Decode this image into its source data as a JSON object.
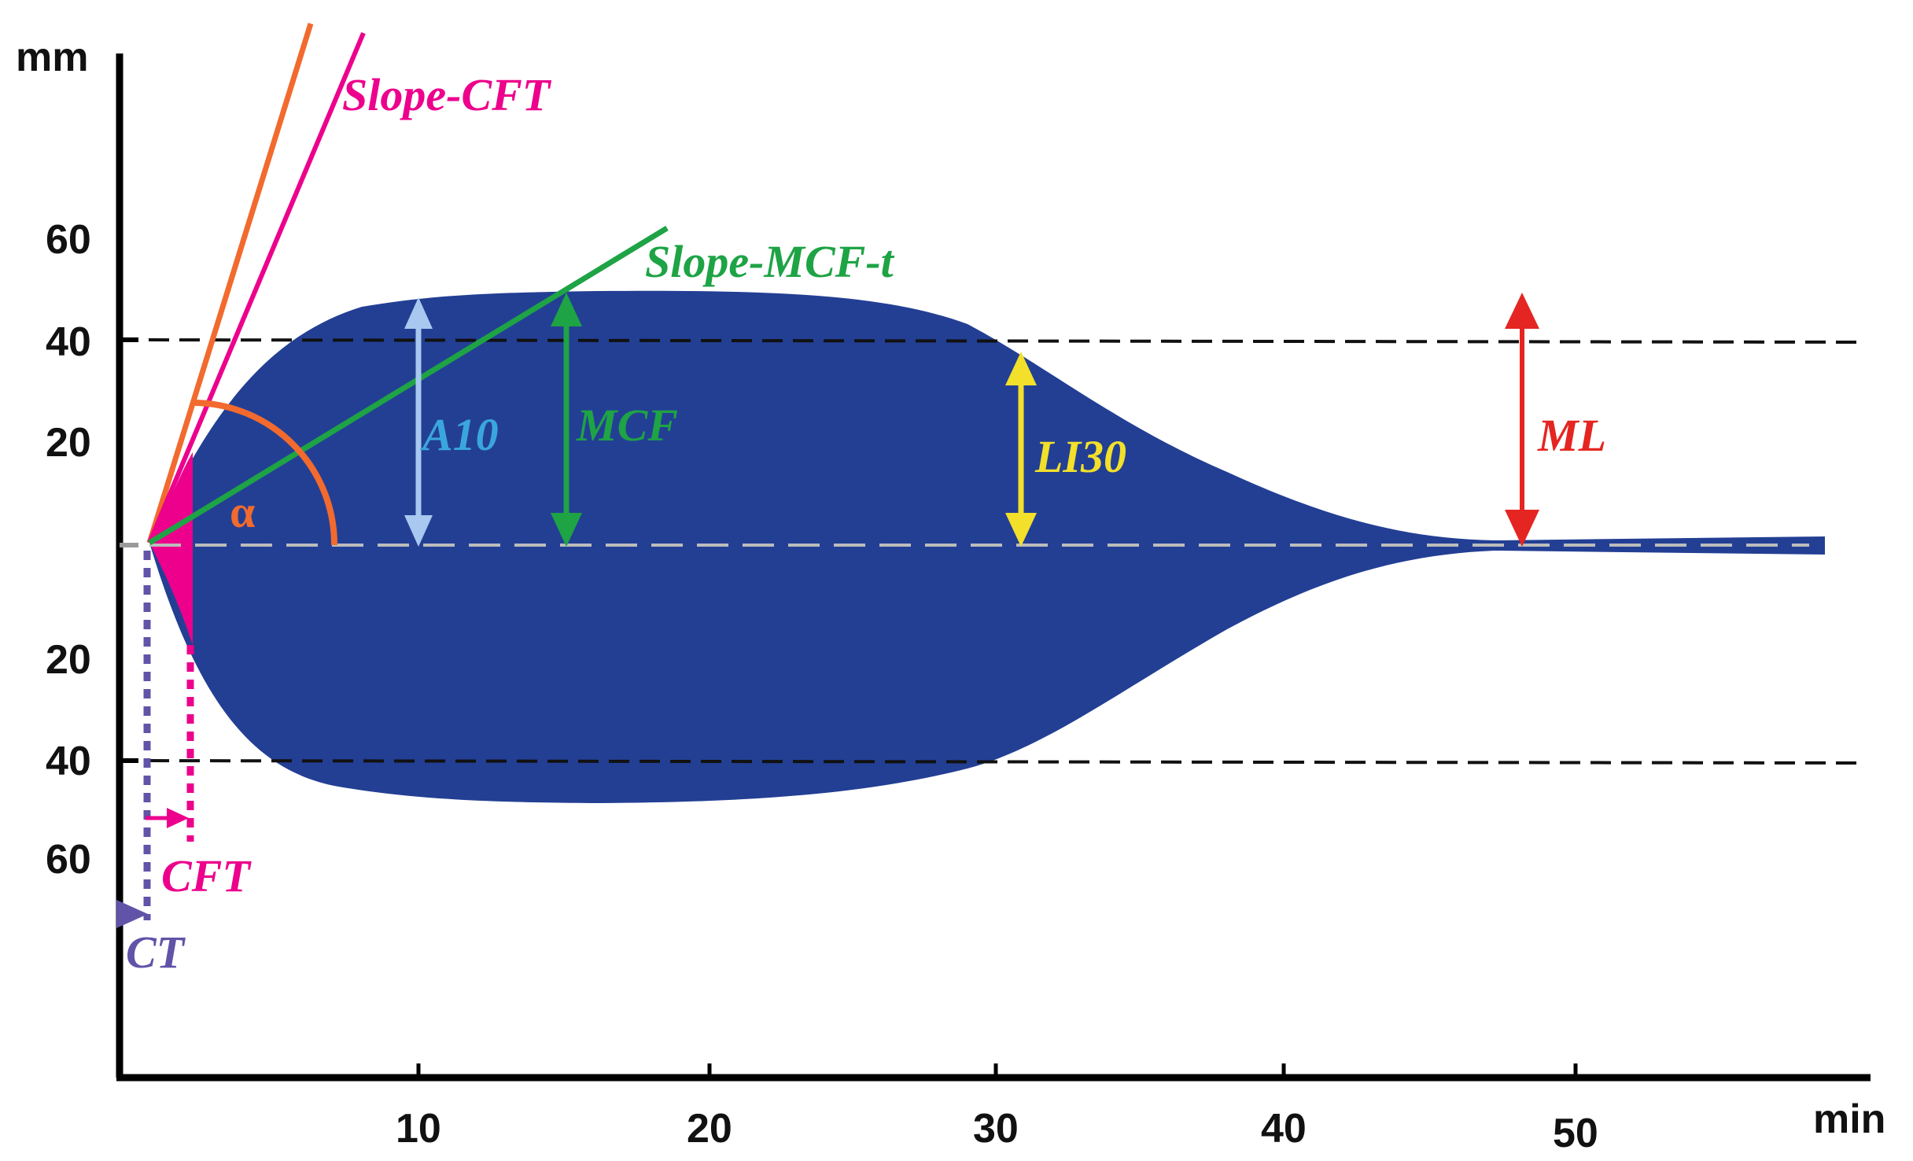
{
  "axes": {
    "y_unit": "mm",
    "x_unit": "min",
    "y_ticks_upper": [
      "60",
      "40",
      "20"
    ],
    "y_ticks_lower": [
      "20",
      "40",
      "60"
    ],
    "x_ticks": [
      "10",
      "20",
      "30",
      "40",
      "50"
    ]
  },
  "labels": {
    "slope_cft": "Slope-CFT",
    "slope_mcf_t": "Slope-MCF-t",
    "alpha": "α",
    "a10": "A10",
    "mcf": "MCF",
    "li30": "LI30",
    "ml": "ML",
    "cft": "CFT",
    "ct": "CT"
  },
  "colors": {
    "trace": "#233f94",
    "axis": "#000000",
    "slope_cft": "#ec008c",
    "alpha_line": "#f26a2e",
    "slope_mcf_t": "#1ea345",
    "a10": "#a8c8f0",
    "mcf": "#1ea345",
    "li30": "#f2e02a",
    "ml": "#e52521",
    "cft": "#ec008c",
    "ct": "#6153a8",
    "a10_text": "#3aa6dd"
  }
}
